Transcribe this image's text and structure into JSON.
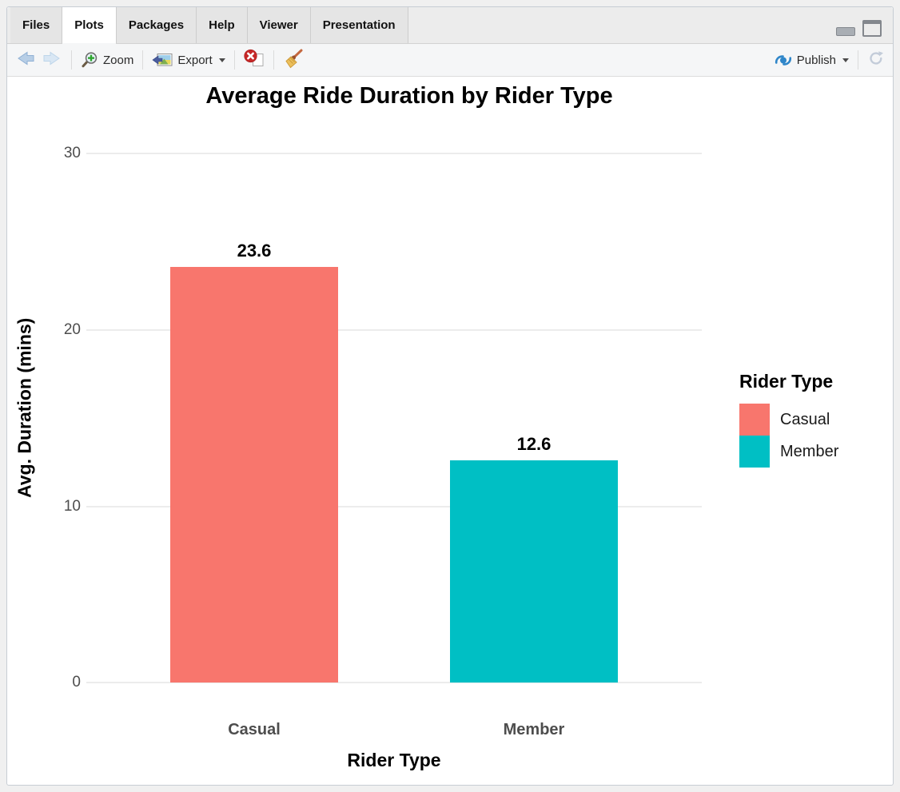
{
  "tabs": [
    {
      "label": "Files",
      "active": false
    },
    {
      "label": "Plots",
      "active": true
    },
    {
      "label": "Packages",
      "active": false
    },
    {
      "label": "Help",
      "active": false
    },
    {
      "label": "Viewer",
      "active": false
    },
    {
      "label": "Presentation",
      "active": false
    }
  ],
  "toolbar": {
    "zoom_label": "Zoom",
    "export_label": "Export",
    "publish_label": "Publish"
  },
  "icons": {
    "back": "arrow-left",
    "forward": "arrow-right",
    "zoom": "magnifier-plus",
    "export": "image-with-arrow",
    "remove_plot": "red-x-on-page",
    "clear_all": "broom",
    "publish": "publish-swirl",
    "refresh": "circular-arrow",
    "minimize": "minimize-bar",
    "maximize": "maximize-square"
  },
  "colors": {
    "casual_bar": "#F8766D",
    "member_bar": "#00BFC4",
    "gridline": "#ECECEC",
    "axis_text": "#4D4D4D",
    "publish_blue": "#2F86C9"
  },
  "chart_data": {
    "type": "bar",
    "title": "Average Ride Duration by Rider Type",
    "xlabel": "Rider Type",
    "ylabel": "Avg. Duration (mins)",
    "categories": [
      "Casual",
      "Member"
    ],
    "values": [
      23.6,
      12.6
    ],
    "bar_labels": [
      "23.6",
      "12.6"
    ],
    "bar_colors": [
      "#F8766D",
      "#00BFC4"
    ],
    "yticks": [
      0,
      10,
      20,
      30
    ],
    "ylim": [
      0,
      31.2
    ],
    "grid": "horizontal-major",
    "legend": {
      "title": "Rider Type",
      "position": "right",
      "entries": [
        {
          "label": "Casual",
          "color": "#F8766D"
        },
        {
          "label": "Member",
          "color": "#00BFC4"
        }
      ]
    }
  }
}
